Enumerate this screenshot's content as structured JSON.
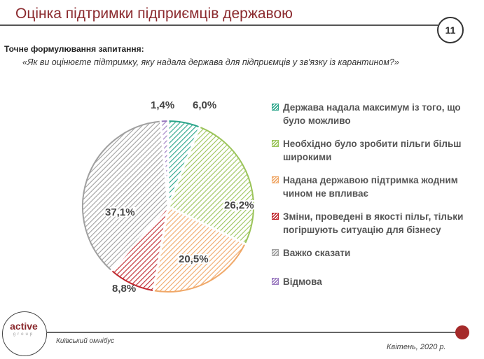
{
  "title": "Оцінка підтримки підприємців державою",
  "page_number": "11",
  "question_label": "Точне формулювання  запитання:",
  "question": "«Як ви оцінюєте підтримку, яку надала держава для підприємців у зв'язку із карантином?»",
  "footer": {
    "logo": "active",
    "logo_sub": "group",
    "left": "Київський омнібус",
    "right": "Квітень, 2020 р."
  },
  "chart_data": {
    "type": "pie",
    "start": "top, clockwise",
    "categories": [
      "Держава надала максимум із того, що було можливо",
      "Необхідно було зробити пільги більш широкими",
      "Надана державою підтримка жодним чином не впливає",
      "Зміни, проведені в якості пільг, тільки погіршують ситуацію для бізнесу",
      "Важко сказати",
      "Відмова"
    ],
    "values": [
      6.0,
      26.2,
      20.5,
      8.8,
      37.1,
      1.4
    ],
    "labels": [
      "6,0%",
      "26,2%",
      "20,5%",
      "8,8%",
      "37,1%",
      "1,4%"
    ],
    "colors": [
      "#2aa58a",
      "#9bc45a",
      "#f0a868",
      "#c0282e",
      "#a0a0a0",
      "#9a7ac0"
    ],
    "legend_position": "right"
  }
}
